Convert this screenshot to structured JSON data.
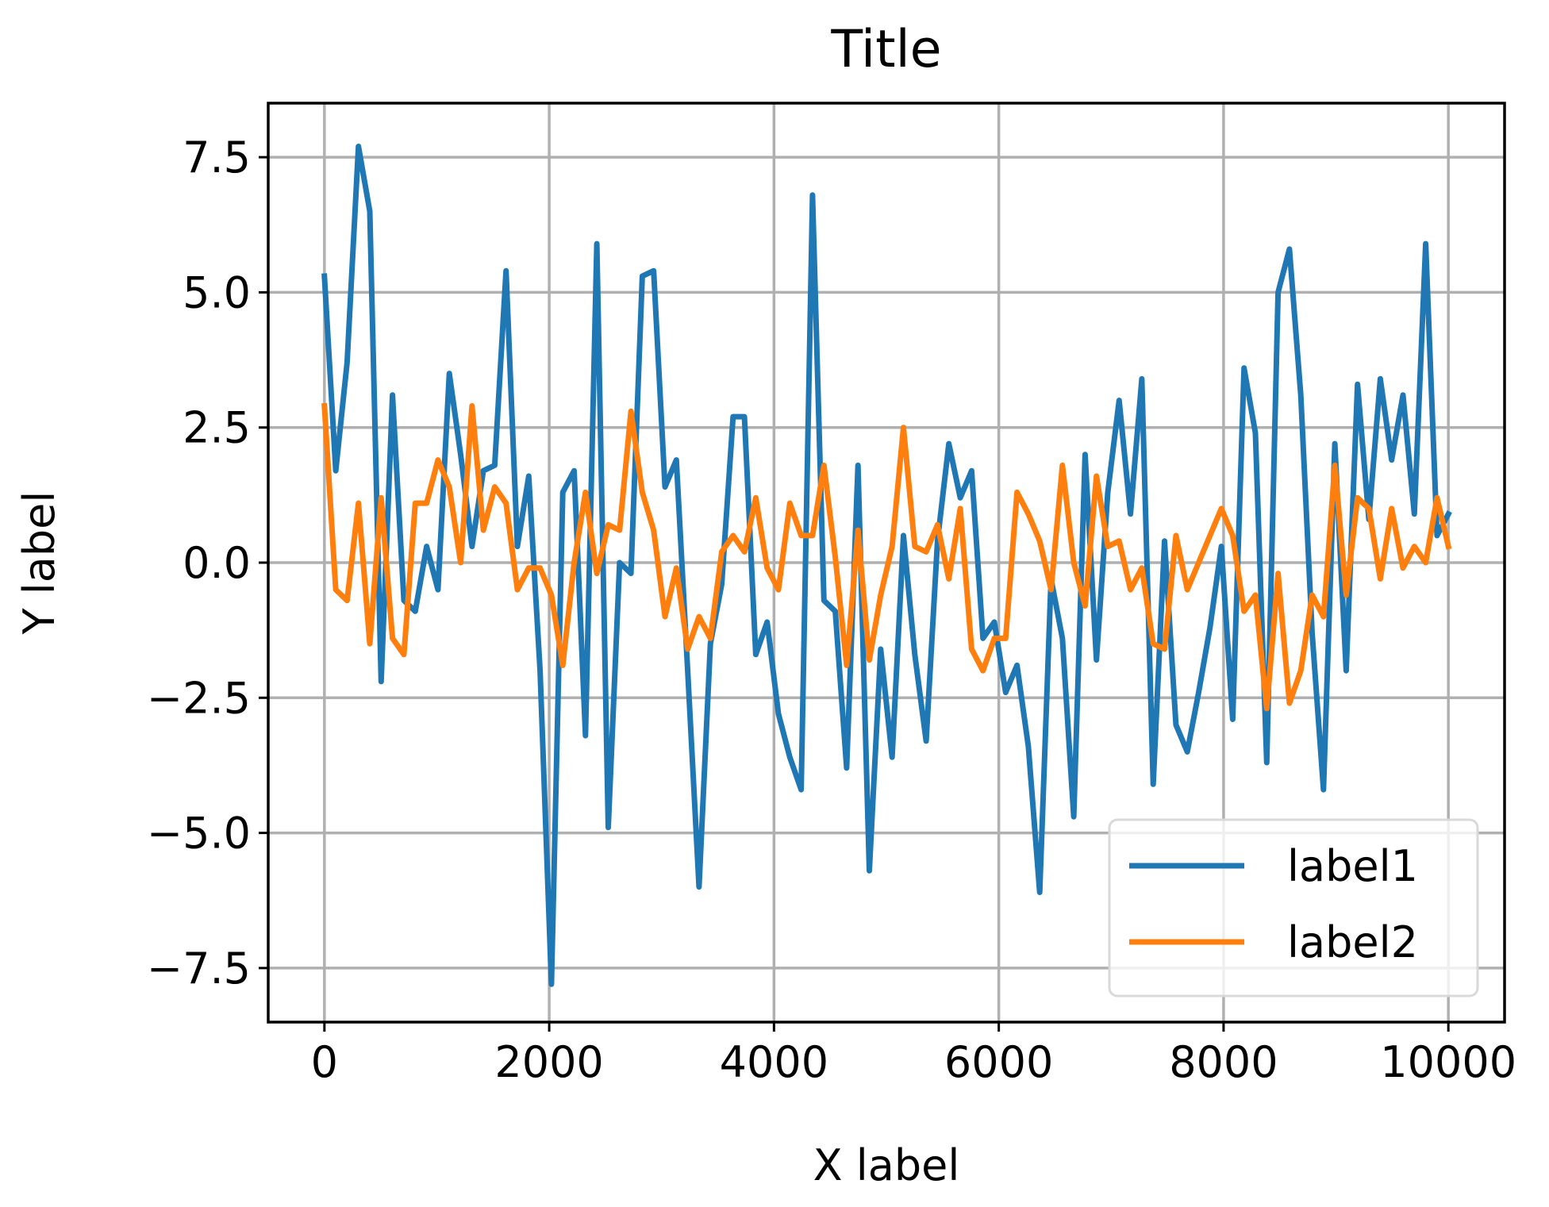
{
  "chart_data": {
    "type": "line",
    "title": "Title",
    "xlabel": "X label",
    "ylabel": "Y label",
    "xlim": [
      -500,
      10500
    ],
    "ylim": [
      -8.5,
      8.5
    ],
    "xticks": [
      0,
      2000,
      4000,
      6000,
      8000,
      10000
    ],
    "xtick_labels": [
      "0",
      "2000",
      "4000",
      "6000",
      "8000",
      "10000"
    ],
    "yticks": [
      7.5,
      5.0,
      2.5,
      0.0,
      -2.5,
      -5.0,
      -7.5
    ],
    "ytick_labels": [
      "7.5",
      "5.0",
      "2.5",
      "0.0",
      "−2.5",
      "−5.0",
      "−7.5"
    ],
    "grid": true,
    "legend_position": "lower-right",
    "x": [
      0,
      101,
      202,
      303,
      404,
      505,
      606,
      707,
      808,
      909,
      1010,
      1111,
      1212,
      1313,
      1414,
      1515,
      1616,
      1717,
      1818,
      1919,
      2020,
      2121,
      2222,
      2323,
      2424,
      2525,
      2626,
      2727,
      2828,
      2929,
      3030,
      3131,
      3232,
      3333,
      3434,
      3535,
      3636,
      3737,
      3838,
      3939,
      4040,
      4141,
      4242,
      4343,
      4444,
      4545,
      4646,
      4747,
      4848,
      4949,
      5051,
      5152,
      5253,
      5354,
      5455,
      5556,
      5657,
      5758,
      5859,
      5960,
      6061,
      6162,
      6263,
      6364,
      6465,
      6566,
      6667,
      6768,
      6869,
      6970,
      7071,
      7172,
      7273,
      7374,
      7475,
      7576,
      7677,
      7778,
      7879,
      7980,
      8081,
      8182,
      8283,
      8384,
      8485,
      8586,
      8687,
      8788,
      8889,
      8990,
      9091,
      9192,
      9293,
      9394,
      9495,
      9596,
      9697,
      9798,
      9899,
      10000
    ],
    "series": [
      {
        "name": "label1",
        "color": "#1f77b4",
        "values": [
          5.3,
          1.7,
          3.7,
          7.7,
          6.5,
          -2.2,
          3.1,
          -0.7,
          -0.9,
          0.3,
          -0.5,
          3.5,
          2.0,
          0.3,
          1.7,
          1.8,
          5.4,
          0.3,
          1.6,
          -2.0,
          -7.8,
          1.3,
          1.7,
          -3.2,
          5.9,
          -4.9,
          0.0,
          -0.2,
          5.3,
          5.4,
          1.4,
          1.9,
          -2.0,
          -6.0,
          -1.5,
          -0.4,
          2.7,
          2.7,
          -1.7,
          -1.1,
          -2.8,
          -3.6,
          -4.2,
          6.8,
          -0.7,
          -0.9,
          -3.8,
          1.8,
          -5.7,
          -1.6,
          -3.6,
          0.5,
          -1.7,
          -3.3,
          0.4,
          2.2,
          1.2,
          1.7,
          -1.4,
          -1.1,
          -2.4,
          -1.9,
          -3.4,
          -6.1,
          -0.3,
          -1.4,
          -4.7,
          2.0,
          -1.8,
          1.3,
          3.0,
          0.9,
          3.4,
          -4.1,
          0.4,
          -3.0,
          -3.5,
          -2.4,
          -1.2,
          0.3,
          -2.9,
          3.6,
          2.4,
          -3.7,
          5.0,
          5.8,
          3.1,
          -1.3,
          -4.2,
          2.2,
          -2.0,
          3.3,
          0.8,
          3.4,
          1.9,
          3.1,
          0.9,
          5.9,
          0.5,
          0.9
        ]
      },
      {
        "name": "label2",
        "color": "#ff7f0e",
        "values": [
          2.9,
          -0.5,
          -0.7,
          1.1,
          -1.5,
          1.2,
          -1.4,
          -1.7,
          1.1,
          1.1,
          1.9,
          1.4,
          0.0,
          2.9,
          0.6,
          1.4,
          1.1,
          -0.5,
          -0.1,
          -0.1,
          -0.6,
          -1.9,
          0.0,
          1.3,
          -0.2,
          0.7,
          0.6,
          2.8,
          1.3,
          0.6,
          -1.0,
          -0.1,
          -1.6,
          -1.0,
          -1.4,
          0.2,
          0.5,
          0.2,
          1.2,
          -0.1,
          -0.5,
          1.1,
          0.5,
          0.5,
          1.8,
          0.1,
          -1.9,
          0.6,
          -1.8,
          -0.6,
          0.3,
          2.5,
          0.3,
          0.2,
          0.7,
          -0.3,
          1.0,
          -1.6,
          -2.0,
          -1.4,
          -1.4,
          1.3,
          0.9,
          0.4,
          -0.5,
          1.8,
          0.0,
          -0.8,
          1.6,
          0.3,
          0.4,
          -0.5,
          -0.1,
          -1.5,
          -1.6,
          0.5,
          -0.5,
          0.0,
          0.5,
          1.0,
          0.5,
          -0.9,
          -0.6,
          -2.7,
          -0.2,
          -2.6,
          -2.0,
          -0.6,
          -1.0,
          1.8,
          -0.6,
          1.2,
          1.0,
          -0.3,
          1.0,
          -0.1,
          0.3,
          0.0,
          1.2,
          0.3
        ]
      }
    ]
  }
}
